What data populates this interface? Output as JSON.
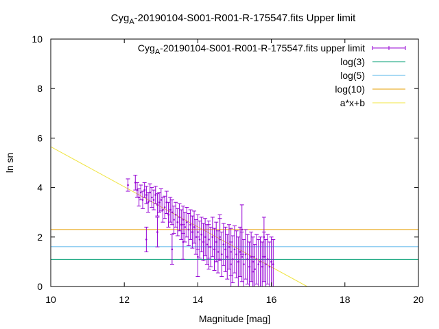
{
  "chart_data": {
    "type": "scatter",
    "title": {
      "main": "Cyg",
      "subscript": "A",
      "rest": "-20190104-S001-R001-R-175547.fits Upper limit"
    },
    "xlabel": "Magnitude [mag]",
    "ylabel": "ln sn",
    "xlim": [
      10,
      20
    ],
    "ylim": [
      0,
      10
    ],
    "xticks": [
      10,
      12,
      14,
      16,
      18,
      20
    ],
    "yticks": [
      0,
      2,
      4,
      6,
      8,
      10
    ],
    "grid": false,
    "legend_position": "top-right",
    "colors": {
      "points": "#9400d3",
      "log3": "#009e73",
      "log5": "#56b4e9",
      "log10": "#e69f00",
      "fit": "#f0e442"
    },
    "series": [
      {
        "name": {
          "main": "Cyg",
          "subscript": "A",
          "rest": "-20190104-S001-R001-R-175547.fits upper limit"
        },
        "kind": "points-with-error-bars",
        "color_key": "points",
        "x": [
          12.1,
          12.3,
          12.35,
          12.4,
          12.45,
          12.5,
          12.55,
          12.6,
          12.65,
          12.7,
          12.75,
          12.8,
          12.85,
          12.9,
          12.95,
          13.0,
          13.05,
          13.1,
          13.15,
          13.2,
          13.25,
          13.3,
          13.35,
          13.4,
          13.45,
          13.5,
          13.55,
          13.6,
          13.65,
          13.7,
          13.75,
          13.8,
          13.85,
          13.9,
          13.95,
          14.0,
          14.05,
          14.1,
          14.15,
          14.2,
          14.25,
          14.3,
          14.35,
          14.4,
          14.45,
          14.5,
          14.55,
          14.6,
          14.65,
          14.7,
          14.75,
          14.8,
          14.85,
          14.9,
          14.95,
          15.0,
          15.05,
          15.1,
          15.15,
          15.2,
          15.25,
          15.3,
          15.35,
          15.4,
          15.45,
          15.5,
          15.55,
          15.6,
          15.65,
          15.7,
          15.75,
          15.8,
          15.85,
          15.9,
          15.95,
          16.0,
          16.05,
          12.6,
          12.9,
          13.3,
          13.6,
          14.0,
          14.3,
          14.6,
          14.9,
          15.2,
          15.5,
          15.8
        ],
        "y": [
          4.1,
          4.2,
          3.9,
          3.6,
          3.8,
          3.5,
          3.9,
          3.7,
          3.4,
          3.8,
          3.6,
          3.5,
          3.7,
          3.3,
          3.4,
          3.5,
          3.1,
          3.2,
          3.4,
          2.9,
          3.1,
          3.0,
          2.7,
          2.9,
          2.6,
          2.8,
          2.5,
          2.7,
          2.4,
          2.6,
          2.3,
          2.5,
          2.2,
          2.4,
          2.0,
          2.2,
          1.9,
          2.1,
          1.8,
          2.0,
          1.7,
          1.9,
          1.6,
          2.0,
          1.5,
          1.8,
          1.4,
          1.9,
          1.3,
          1.7,
          1.5,
          1.2,
          1.6,
          1.4,
          1.1,
          1.5,
          1.3,
          1.0,
          1.4,
          1.2,
          0.9,
          1.3,
          1.1,
          0.8,
          1.2,
          1.0,
          0.7,
          1.1,
          0.9,
          1.0,
          0.8,
          1.2,
          0.9,
          1.1,
          0.8,
          1.0,
          0.9,
          1.9,
          2.2,
          1.5,
          1.8,
          1.2,
          1.6,
          2.0,
          0.9,
          2.3,
          0.6,
          2.0
        ],
        "yerr": [
          0.25,
          0.3,
          0.3,
          0.35,
          0.3,
          0.35,
          0.3,
          0.35,
          0.4,
          0.35,
          0.4,
          0.4,
          0.35,
          0.45,
          0.4,
          0.45,
          0.5,
          0.45,
          0.45,
          0.5,
          0.5,
          0.5,
          0.55,
          0.5,
          0.55,
          0.55,
          0.6,
          0.55,
          0.6,
          0.6,
          0.65,
          0.6,
          0.65,
          0.65,
          0.7,
          0.7,
          0.75,
          0.7,
          0.75,
          0.75,
          0.8,
          0.75,
          0.8,
          0.8,
          0.85,
          0.8,
          0.85,
          0.85,
          0.9,
          0.85,
          0.9,
          0.9,
          0.9,
          0.95,
          0.95,
          0.95,
          0.95,
          1.0,
          1.0,
          1.0,
          1.0,
          1.0,
          1.0,
          1.0,
          1.0,
          1.0,
          1.0,
          1.0,
          1.0,
          1.0,
          1.0,
          1.0,
          1.0,
          1.0,
          1.0,
          1.0,
          1.0,
          0.5,
          0.6,
          0.6,
          0.7,
          0.8,
          0.9,
          0.9,
          0.9,
          1.0,
          0.6,
          0.8
        ]
      },
      {
        "name": "log(3)",
        "kind": "hline",
        "color_key": "log3",
        "y": 1.0986
      },
      {
        "name": "log(5)",
        "kind": "hline",
        "color_key": "log5",
        "y": 1.6094
      },
      {
        "name": "log(10)",
        "kind": "hline",
        "color_key": "log10",
        "y": 2.3026
      },
      {
        "name": "a*x+b",
        "kind": "line",
        "color_key": "fit",
        "a": -0.81,
        "b": 13.75
      }
    ]
  }
}
